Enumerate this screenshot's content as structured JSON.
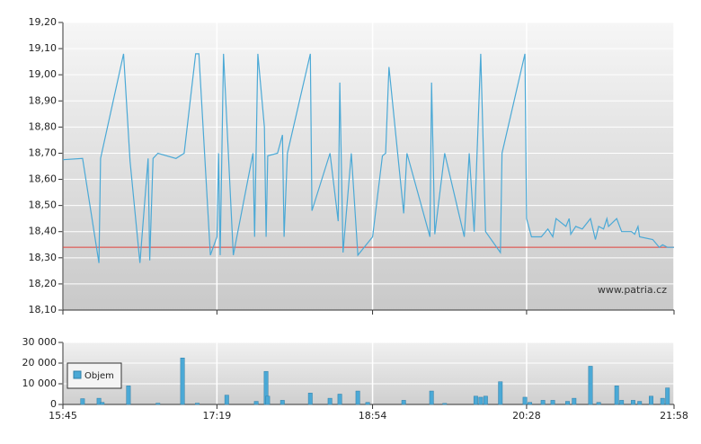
{
  "chart_data": [
    {
      "type": "line",
      "watermark": "www.patria.cz",
      "xlim": [
        945,
        1318
      ],
      "ylim": [
        18.1,
        19.2
      ],
      "yticks": [
        {
          "value": 18.1,
          "label": "18,10"
        },
        {
          "value": 18.2,
          "label": "18,20"
        },
        {
          "value": 18.3,
          "label": "18,30"
        },
        {
          "value": 18.4,
          "label": "18,40"
        },
        {
          "value": 18.5,
          "label": "18,50"
        },
        {
          "value": 18.6,
          "label": "18,60"
        },
        {
          "value": 18.7,
          "label": "18,70"
        },
        {
          "value": 18.8,
          "label": "18,80"
        },
        {
          "value": 18.9,
          "label": "18,90"
        },
        {
          "value": 19.0,
          "label": "19,00"
        },
        {
          "value": 19.1,
          "label": "19,10"
        },
        {
          "value": 19.2,
          "label": "19,20"
        }
      ],
      "reference_line": 18.34,
      "reference_color": "#e0423a",
      "grid": true,
      "series": [
        {
          "color": "#4ba9d6",
          "x": [
            945,
            957,
            967,
            968,
            982,
            986,
            992,
            997,
            998,
            1000,
            1003,
            1014,
            1019,
            1026,
            1028,
            1035,
            1039,
            1040,
            1041,
            1043,
            1049,
            1061,
            1062,
            1064,
            1068,
            1069,
            1070,
            1076,
            1079,
            1080,
            1082,
            1096,
            1097,
            1108,
            1113,
            1114,
            1116,
            1121,
            1125,
            1134,
            1140,
            1142,
            1144,
            1153,
            1155,
            1169,
            1170,
            1172,
            1178,
            1190,
            1193,
            1196,
            1200,
            1203,
            1212,
            1213,
            1227,
            1228,
            1231,
            1237,
            1241,
            1244,
            1246,
            1252,
            1254,
            1255,
            1258,
            1262,
            1267,
            1270,
            1272,
            1275,
            1277,
            1278,
            1283,
            1286,
            1292,
            1294,
            1296,
            1297,
            1305,
            1309,
            1311,
            1314,
            1318
          ],
          "values": [
            18.675,
            18.68,
            18.28,
            18.68,
            19.08,
            18.67,
            18.28,
            18.68,
            18.29,
            18.68,
            18.7,
            18.68,
            18.7,
            19.08,
            19.08,
            18.31,
            18.38,
            18.7,
            18.31,
            19.08,
            18.31,
            18.7,
            18.38,
            19.08,
            18.8,
            18.38,
            18.69,
            18.7,
            18.77,
            18.38,
            18.7,
            19.08,
            18.48,
            18.7,
            18.44,
            18.97,
            18.32,
            18.7,
            18.31,
            18.38,
            18.69,
            18.7,
            19.03,
            18.47,
            18.7,
            18.38,
            18.97,
            18.39,
            18.7,
            18.38,
            18.7,
            18.4,
            19.08,
            18.4,
            18.32,
            18.7,
            19.08,
            18.45,
            18.38,
            18.38,
            18.41,
            18.38,
            18.45,
            18.42,
            18.45,
            18.39,
            18.42,
            18.41,
            18.45,
            18.37,
            18.42,
            18.41,
            18.45,
            18.42,
            18.45,
            18.4,
            18.4,
            18.39,
            18.42,
            18.38,
            18.37,
            18.34,
            18.35,
            18.34,
            18.34
          ]
        }
      ]
    },
    {
      "type": "bar",
      "xlim": [
        945,
        1318
      ],
      "xticks": [
        {
          "value": 945,
          "label": "15:45"
        },
        {
          "value": 1039,
          "label": "17:19"
        },
        {
          "value": 1134,
          "label": "18:54"
        },
        {
          "value": 1228,
          "label": "20:28"
        },
        {
          "value": 1318,
          "label": "21:58"
        }
      ],
      "ylim": [
        0,
        30000
      ],
      "yticks": [
        0,
        {
          "value": 10000,
          "label": "10 000"
        },
        {
          "value": 20000,
          "label": "20 000"
        },
        {
          "value": 30000,
          "label": "30 000"
        }
      ],
      "grid": true,
      "legend": "top-left",
      "series": [
        {
          "name": "Objem",
          "color": "#4ba9d6",
          "x": [
            957,
            967,
            969,
            985,
            1003,
            1018,
            1027,
            1045,
            1063,
            1069,
            1070,
            1079,
            1096,
            1108,
            1114,
            1125,
            1131,
            1153,
            1170,
            1178,
            1197,
            1200,
            1203,
            1212,
            1227,
            1230,
            1238,
            1244,
            1253,
            1257,
            1267,
            1272,
            1283,
            1286,
            1293,
            1297,
            1304,
            1311,
            1314
          ],
          "values": [
            2800,
            3000,
            1000,
            9000,
            600,
            22500,
            600,
            4500,
            1500,
            16000,
            4000,
            2000,
            5500,
            3000,
            5000,
            6500,
            1000,
            2000,
            6500,
            500,
            4000,
            3500,
            4000,
            11000,
            3500,
            1000,
            2000,
            2000,
            1500,
            3000,
            18500,
            1000,
            9000,
            2000,
            2000,
            1500,
            4000,
            3000,
            8000
          ]
        }
      ]
    }
  ]
}
